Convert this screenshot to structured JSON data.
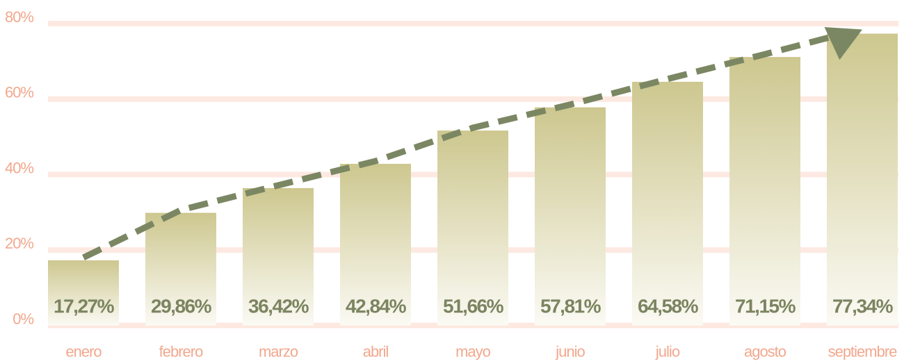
{
  "chart_data": {
    "type": "bar",
    "categories": [
      "enero",
      "febrero",
      "marzo",
      "abril",
      "mayo",
      "junio",
      "julio",
      "agosto",
      "septiembre"
    ],
    "values": [
      17.27,
      29.86,
      36.42,
      42.84,
      51.66,
      57.81,
      64.58,
      71.15,
      77.34
    ],
    "value_labels": [
      "17,27%",
      "29,86%",
      "36,42%",
      "42,84%",
      "51,66%",
      "57,81%",
      "64,58%",
      "71,15%",
      "77,34%"
    ],
    "color": "#cdc78f",
    "ylim": [
      0,
      80
    ],
    "yticks": [
      {
        "value": 0,
        "label": "0%"
      },
      {
        "value": 20,
        "label": "20%"
      },
      {
        "value": 40,
        "label": "40%"
      },
      {
        "value": 60,
        "label": "60%"
      },
      {
        "value": 80,
        "label": "80%"
      }
    ],
    "grid": true
  }
}
